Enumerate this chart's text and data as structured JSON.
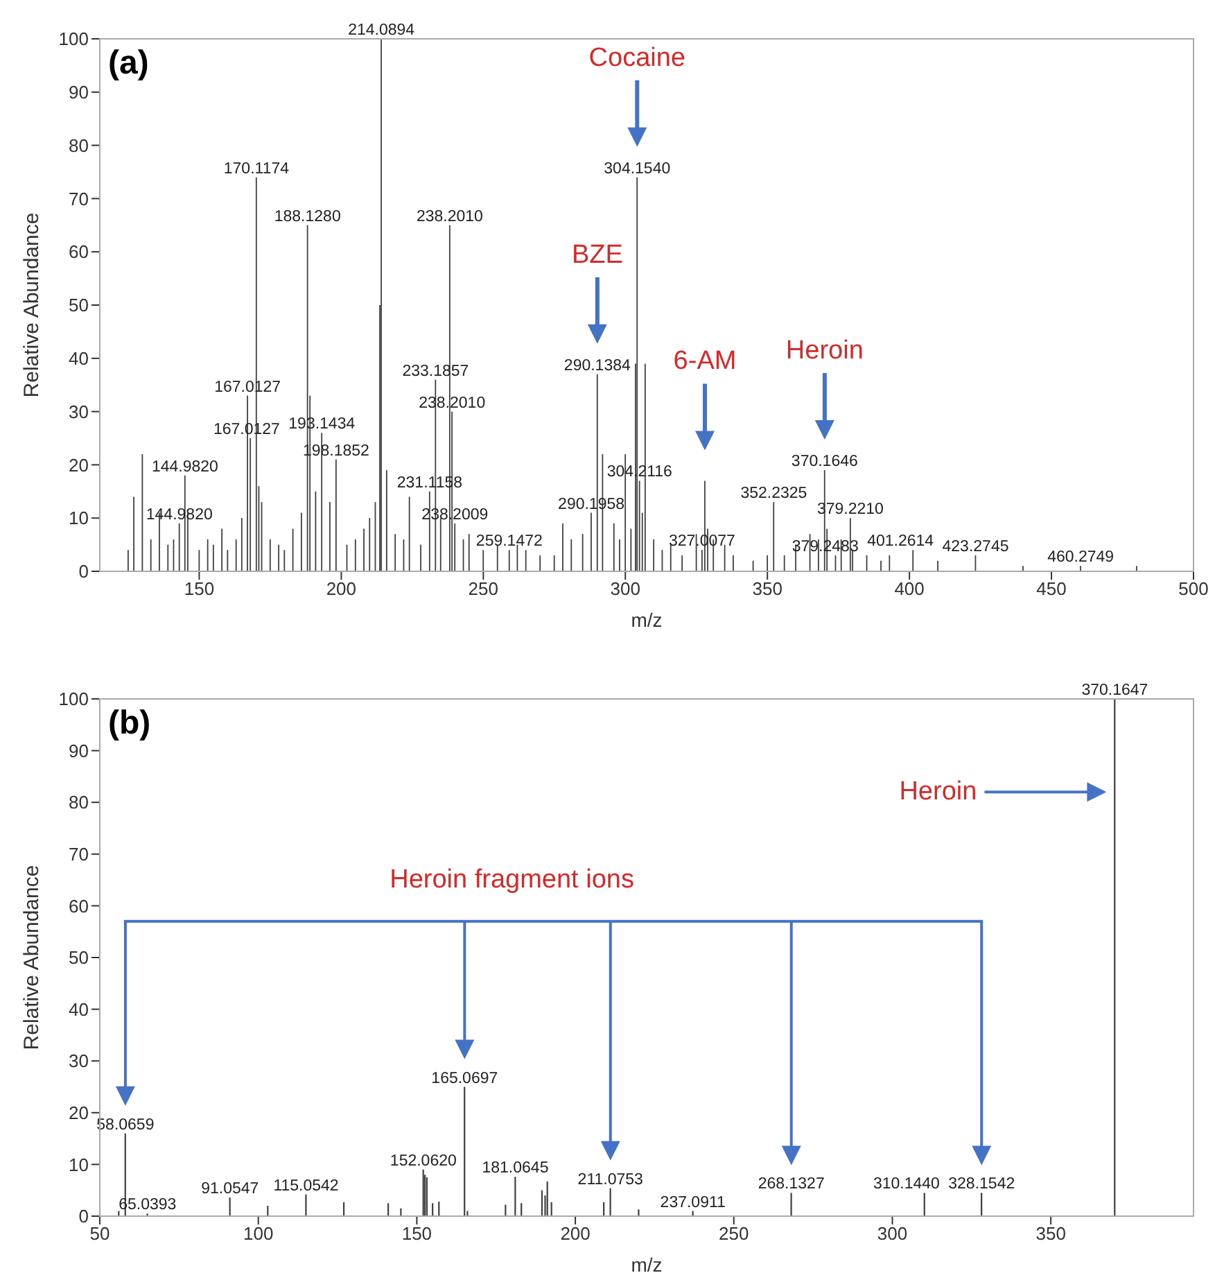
{
  "chart_data": [
    {
      "type": "bar",
      "xlabel": "m/z",
      "ylabel": "Relative Abundance",
      "color": "#404040",
      "xlim": [
        115,
        500
      ],
      "xticks": [
        150,
        200,
        250,
        300,
        350,
        400,
        450,
        500
      ],
      "ylim": [
        0,
        100
      ],
      "yticks": [
        0,
        10,
        20,
        30,
        40,
        50,
        60,
        70,
        80,
        90,
        100
      ],
      "x": [
        125,
        127,
        130,
        133,
        136,
        139,
        141,
        143,
        144.982,
        146,
        150,
        153,
        155,
        158,
        160,
        163,
        165,
        167.0127,
        168,
        170.1174,
        171,
        172,
        175,
        178,
        180,
        183,
        186,
        188.128,
        189,
        191,
        193.1434,
        196,
        198.1852,
        202,
        205,
        208,
        210,
        212,
        213.6,
        214.0894,
        216,
        219,
        222,
        224,
        228,
        231.1158,
        233.1857,
        235,
        238.201,
        239,
        240,
        243,
        245,
        250,
        255,
        259.1472,
        262,
        265,
        270,
        275,
        278,
        281,
        285,
        288,
        290.1384,
        292,
        296,
        298,
        300,
        302,
        303.6,
        304.154,
        305,
        306,
        307,
        310,
        313,
        316,
        320,
        323,
        325,
        327.0077,
        328,
        329,
        331,
        335,
        338,
        345,
        350,
        352.2325,
        356,
        360,
        365,
        368,
        370.1646,
        371,
        374,
        376,
        379.221,
        380,
        385,
        390,
        393,
        401.2614,
        410,
        423.2745,
        440,
        460.2749,
        480
      ],
      "values": [
        4,
        14,
        22,
        6,
        11,
        5,
        6,
        9,
        18,
        11,
        4,
        6,
        5,
        8,
        4,
        6,
        10,
        33,
        25,
        74,
        16,
        13,
        6,
        5,
        4,
        8,
        11,
        65,
        33,
        15,
        26,
        13,
        21,
        5,
        6,
        8,
        10,
        13,
        50,
        100,
        19,
        7,
        6,
        14,
        5,
        15,
        36,
        10,
        65,
        30,
        9,
        6,
        7,
        4,
        5,
        4,
        5,
        4,
        3,
        3,
        9,
        6,
        7,
        11,
        37,
        22,
        9,
        6,
        22,
        8,
        39,
        74,
        17,
        11,
        39,
        6,
        4,
        5,
        3,
        null,
        7,
        4,
        17,
        8,
        6,
        5,
        3,
        2,
        3,
        13,
        3,
        5,
        7,
        6,
        19,
        8,
        3,
        6,
        10,
        4,
        3,
        2,
        3,
        4,
        2,
        3,
        1,
        1,
        1
      ],
      "annotations": [
        "(a)",
        "Cocaine",
        "BZE",
        "6-AM",
        "Heroin",
        {
          "text": "214.0894",
          "x": 214.0894,
          "y": 100
        },
        {
          "text": "170.1174",
          "x": 170.1174,
          "y": 74
        },
        {
          "text": "188.1280",
          "x": 188.128,
          "y": 65
        },
        {
          "text": "238.2010",
          "x": 238.201,
          "y": 65
        },
        {
          "text": "304.1540",
          "x": 304.154,
          "y": 74
        },
        {
          "text": "233.1857",
          "x": 233.1857,
          "y": 36
        },
        {
          "text": "290.1384",
          "x": 290.1384,
          "y": 37
        },
        {
          "text": "238.2010",
          "x": 239,
          "y": 30
        },
        {
          "text": "167.0127",
          "x": 167.0127,
          "y": 33
        },
        {
          "text": "193.1434",
          "x": 193.1434,
          "y": 26
        },
        {
          "text": "167.0127",
          "x": 168,
          "y": 25
        },
        {
          "text": "198.1852",
          "x": 198.1852,
          "y": 21
        },
        {
          "text": "144.9820",
          "x": 144.982,
          "y": 18
        },
        {
          "text": "144.9820",
          "x": 143,
          "y": 9
        },
        {
          "text": "231.1158",
          "x": 231.1158,
          "y": 15
        },
        {
          "text": "238.2009",
          "x": 240,
          "y": 9
        },
        {
          "text": "259.1472",
          "x": 259.1472,
          "y": 4
        },
        {
          "text": "290.1958",
          "x": 288,
          "y": 11
        },
        {
          "text": "304.2116",
          "x": 305,
          "y": 17
        },
        {
          "text": "327.0077",
          "x": 327.0077,
          "y": 4
        },
        {
          "text": "352.2325",
          "x": 352.2325,
          "y": 13
        },
        {
          "text": "370.1646",
          "x": 370.1646,
          "y": 19
        },
        {
          "text": "379.2210",
          "x": 379.221,
          "y": 10
        },
        {
          "text": "379.2483",
          "x": 374,
          "y": 3
        },
        {
          "text": "401.2614",
          "x": 401.2614,
          "y": 4
        },
        {
          "text": "423.2745",
          "x": 423.2745,
          "y": 3
        },
        {
          "text": "460.2749",
          "x": 460.2749,
          "y": 1
        }
      ]
    },
    {
      "type": "bar",
      "xlabel": "m/z",
      "ylabel": "Relative Abundance",
      "color": "#404040",
      "xlim": [
        50,
        395
      ],
      "xticks": [
        50,
        100,
        150,
        200,
        250,
        300,
        350
      ],
      "ylim": [
        0,
        100
      ],
      "yticks": [
        0,
        10,
        20,
        30,
        40,
        50,
        60,
        70,
        80,
        90,
        100
      ],
      "x": [
        56,
        58.0659,
        65.0393,
        91.0547,
        103,
        115.0542,
        127,
        141,
        145,
        152.062,
        152.6,
        153.2,
        155,
        157,
        165.0697,
        166,
        178,
        181.0645,
        183,
        189.5,
        190.5,
        191.2,
        192.5,
        209,
        211.0753,
        220,
        237.0911,
        268.1327,
        310.144,
        328.1542,
        370.1647
      ],
      "values": [
        1,
        16,
        0.5,
        3.6,
        2,
        4.2,
        2.7,
        2.5,
        1.5,
        9,
        8,
        7.5,
        2.5,
        2.8,
        25,
        1,
        2.2,
        7.6,
        2.5,
        5,
        4,
        6.7,
        2.7,
        2.7,
        5.4,
        1.3,
        1,
        4.5,
        4.5,
        4.5,
        100
      ],
      "annotations": [
        "(b)",
        "Heroin",
        "Heroin fragment ions",
        {
          "text": "58.0659",
          "x": 58.0659,
          "y": 16
        },
        {
          "text": "65.0393",
          "x": 65.0393,
          "y": 0.5
        },
        {
          "text": "91.0547",
          "x": 91.0547,
          "y": 3.6
        },
        {
          "text": "115.0542",
          "x": 115.0542,
          "y": 4.2
        },
        {
          "text": "152.0620",
          "x": 152.062,
          "y": 9
        },
        {
          "text": "165.0697",
          "x": 165.0697,
          "y": 25
        },
        {
          "text": "181.0645",
          "x": 181.0645,
          "y": 7.6
        },
        {
          "text": "211.0753",
          "x": 211.0753,
          "y": 5.4
        },
        {
          "text": "237.0911",
          "x": 237.0911,
          "y": 1
        },
        {
          "text": "268.1327",
          "x": 268.1327,
          "y": 4.5
        },
        {
          "text": "310.1440",
          "x": 310.144,
          "y": 4.5
        },
        {
          "text": "328.1542",
          "x": 328.1542,
          "y": 4.5
        },
        {
          "text": "370.1647",
          "x": 370.1647,
          "y": 100
        }
      ]
    }
  ]
}
